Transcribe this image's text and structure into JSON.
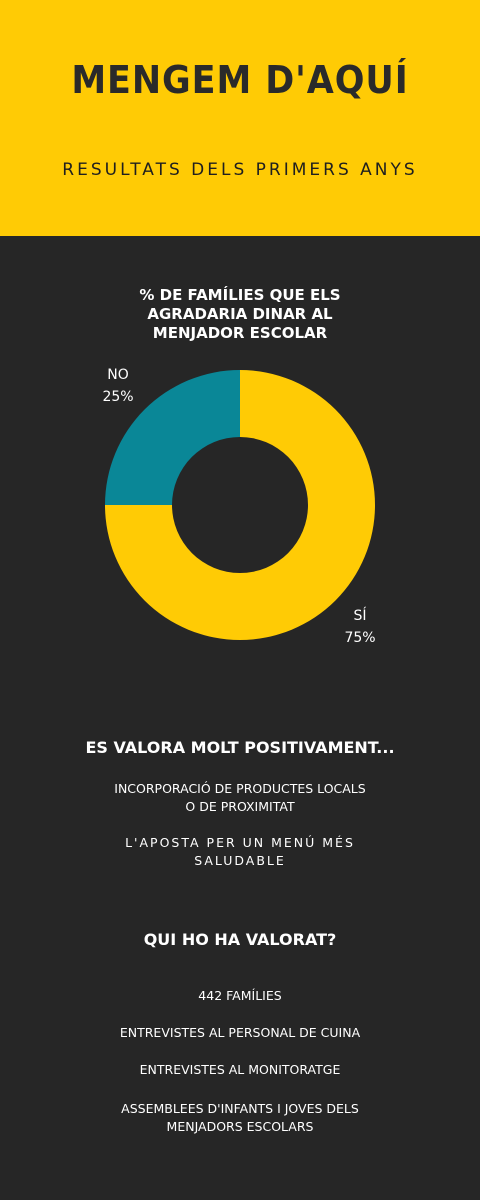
{
  "header": {
    "title": "MENGEM D'AQUÍ",
    "subtitle": "RESULTATS DELS PRIMERS ANYS"
  },
  "colors": {
    "yellow": "#ffcb05",
    "teal": "#0a8797",
    "background": "#262626",
    "header_text": "#2a2a2a"
  },
  "chart_data": {
    "type": "pie",
    "title": "% DE FAMÍLIES QUE ELS\nAGRADARIA DINAR AL\nMENJADOR ESCOLAR",
    "donut": true,
    "slices": [
      {
        "label": "NO",
        "value": 25,
        "value_label": "25%",
        "color": "#0a8797"
      },
      {
        "label": "SÍ",
        "value": 75,
        "value_label": "75%",
        "color": "#ffcb05"
      }
    ]
  },
  "valued": {
    "heading": "ES VALORA MOLT POSITIVAMENT...",
    "items": [
      "INCORPORACIÓ DE PRODUCTES LOCALS\nO DE PROXIMITAT",
      "L'APOSTA PER UN MENÚ MÉS\nSALUDABLE"
    ]
  },
  "who": {
    "heading": "QUI HO HA VALORAT?",
    "items": [
      "442 FAMÍLIES",
      "ENTREVISTES AL PERSONAL DE CUINA",
      "ENTREVISTES AL MONITORATGE",
      "ASSEMBLEES D'INFANTS I JOVES DELS\nMENJADORS ESCOLARS"
    ]
  }
}
